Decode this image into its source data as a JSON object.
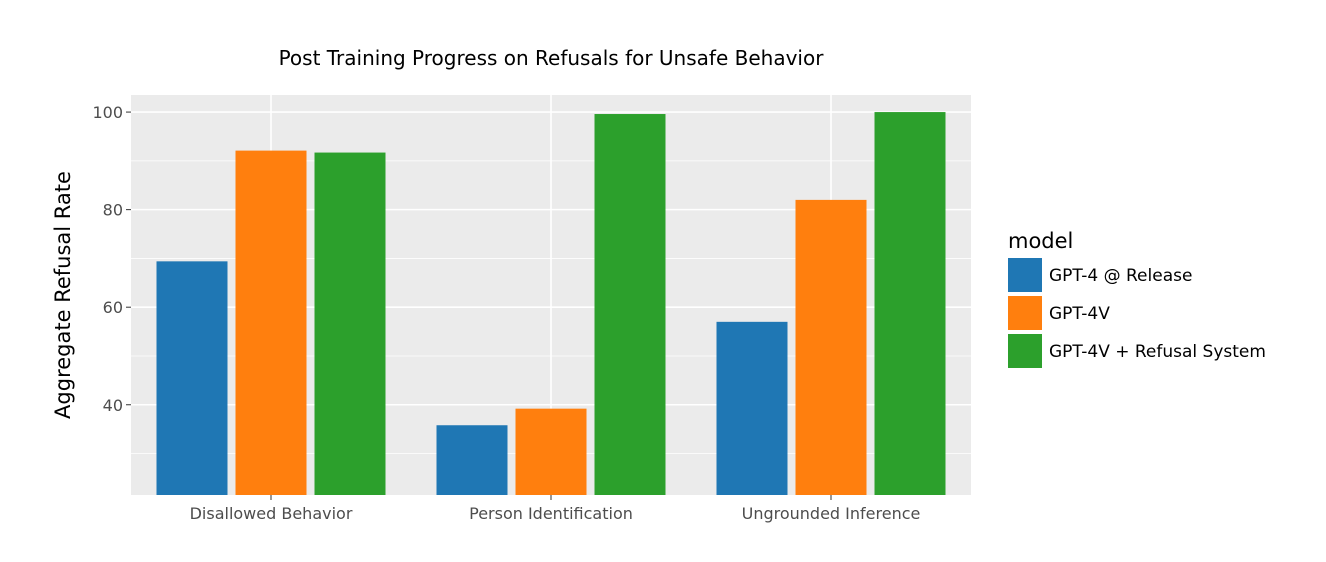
{
  "chart_data": {
    "type": "bar",
    "title": "Post Training Progress on Refusals for Unsafe Behavior",
    "xlabel": "",
    "ylabel": "Aggregate Refusal Rate",
    "categories": [
      "Disallowed Behavior",
      "Person Identification",
      "Ungrounded Inference"
    ],
    "series": [
      {
        "name": "GPT-4 @ Release",
        "values": [
          69.4,
          35.8,
          57.0
        ],
        "color": "#1f77b4"
      },
      {
        "name": "GPT-4V",
        "values": [
          92.1,
          39.2,
          82.0
        ],
        "color": "#ff7f0e"
      },
      {
        "name": "GPT-4V + Refusal System",
        "values": [
          91.7,
          99.6,
          100.0
        ],
        "color": "#2ca02c"
      }
    ],
    "ylim": [
      21.5,
      103.5
    ],
    "yticks": [
      40,
      60,
      80,
      100
    ],
    "grid": true,
    "legend": {
      "title": "model",
      "position": "right"
    },
    "panel_background": "#ebebeb"
  }
}
